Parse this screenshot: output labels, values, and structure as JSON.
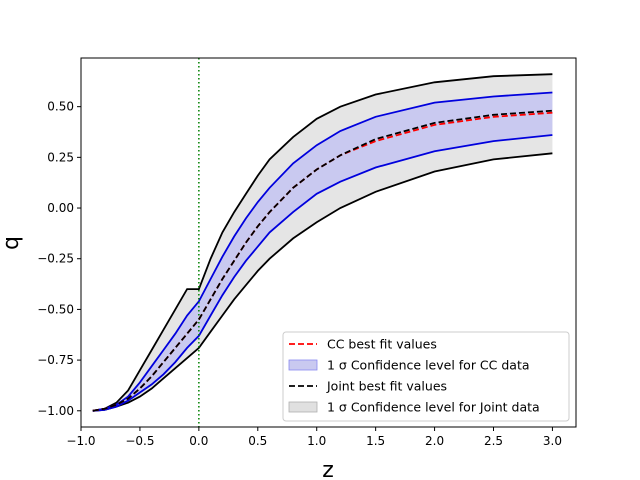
{
  "chart_data": {
    "type": "line",
    "title": "",
    "xlabel": "z",
    "ylabel": "q",
    "xlim": [
      -1.0,
      3.2
    ],
    "ylim": [
      -1.08,
      0.74
    ],
    "grid": false,
    "legend_position": "lower-right",
    "x_ticks": [
      "−1.0",
      "−0.5",
      "0.0",
      "0.5",
      "1.0",
      "1.5",
      "2.0",
      "2.5",
      "3.0"
    ],
    "y_ticks": [
      "−1.00",
      "−0.75",
      "−0.50",
      "−0.25",
      "0.00",
      "0.25",
      "0.50"
    ],
    "x_tick_values": [
      -1.0,
      -0.5,
      0.0,
      0.5,
      1.0,
      1.5,
      2.0,
      2.5,
      3.0
    ],
    "y_tick_values": [
      -1.0,
      -0.75,
      -0.5,
      -0.25,
      0.0,
      0.25,
      0.5
    ],
    "vertical_line": {
      "x": 0.0,
      "color": "#008000",
      "style": "dotted"
    },
    "x": [
      -0.9,
      -0.8,
      -0.7,
      -0.6,
      -0.5,
      -0.4,
      -0.3,
      -0.2,
      -0.1,
      0.0,
      0.1,
      0.2,
      0.3,
      0.4,
      0.5,
      0.6,
      0.8,
      1.0,
      1.2,
      1.5,
      2.0,
      2.5,
      3.0
    ],
    "bands": [
      {
        "name": "1 σ Confidence level for Joint data",
        "color": "#e5e5e5",
        "edge_color": "#000000",
        "upper": [
          -1.0,
          -0.99,
          -0.96,
          -0.9,
          -0.8,
          -0.7,
          -0.6,
          -0.5,
          -0.4,
          -0.4,
          -0.25,
          -0.12,
          -0.02,
          0.07,
          0.16,
          0.24,
          0.35,
          0.44,
          0.5,
          0.56,
          0.62,
          0.65,
          0.66
        ],
        "lower": [
          -1.0,
          -0.995,
          -0.98,
          -0.96,
          -0.93,
          -0.89,
          -0.84,
          -0.79,
          -0.74,
          -0.69,
          -0.61,
          -0.53,
          -0.45,
          -0.38,
          -0.31,
          -0.25,
          -0.15,
          -0.07,
          0.0,
          0.08,
          0.18,
          0.24,
          0.27
        ]
      },
      {
        "name": "1 σ Confidence level for CC data",
        "color": "#c9c9f0",
        "edge_color": "#0000dd",
        "upper": [
          -1.0,
          -0.99,
          -0.97,
          -0.93,
          -0.86,
          -0.78,
          -0.7,
          -0.62,
          -0.53,
          -0.46,
          -0.35,
          -0.24,
          -0.14,
          -0.05,
          0.03,
          0.1,
          0.22,
          0.31,
          0.38,
          0.45,
          0.52,
          0.55,
          0.57
        ],
        "lower": [
          -1.0,
          -0.995,
          -0.98,
          -0.95,
          -0.91,
          -0.87,
          -0.82,
          -0.76,
          -0.69,
          -0.63,
          -0.53,
          -0.43,
          -0.34,
          -0.26,
          -0.19,
          -0.12,
          -0.02,
          0.07,
          0.13,
          0.2,
          0.28,
          0.33,
          0.36
        ]
      }
    ],
    "series": [
      {
        "name": "CC best fit values",
        "color": "#ff0000",
        "style": "dashed",
        "values": [
          -1.0,
          -0.99,
          -0.97,
          -0.94,
          -0.89,
          -0.83,
          -0.76,
          -0.69,
          -0.62,
          -0.55,
          -0.45,
          -0.35,
          -0.26,
          -0.17,
          -0.09,
          -0.02,
          0.1,
          0.19,
          0.26,
          0.33,
          0.41,
          0.45,
          0.47
        ]
      },
      {
        "name": "Joint best fit values",
        "color": "#000000",
        "style": "dashed",
        "values": [
          -1.0,
          -0.99,
          -0.97,
          -0.94,
          -0.89,
          -0.83,
          -0.76,
          -0.69,
          -0.62,
          -0.55,
          -0.45,
          -0.35,
          -0.26,
          -0.17,
          -0.09,
          -0.02,
          0.1,
          0.19,
          0.26,
          0.34,
          0.42,
          0.46,
          0.48
        ]
      }
    ],
    "legend": [
      {
        "label": "CC best fit values",
        "kind": "line",
        "color": "#ff0000",
        "style": "dashed"
      },
      {
        "label": "1 σ Confidence level for CC data",
        "kind": "patch",
        "color": "#c9c9f0",
        "edge_color": "#8a8af0"
      },
      {
        "label": "Joint best fit values",
        "kind": "line",
        "color": "#000000",
        "style": "dashed"
      },
      {
        "label": "1 σ Confidence level for Joint data",
        "kind": "patch",
        "color": "#e0e0e0",
        "edge_color": "#b0b0b0"
      }
    ]
  }
}
